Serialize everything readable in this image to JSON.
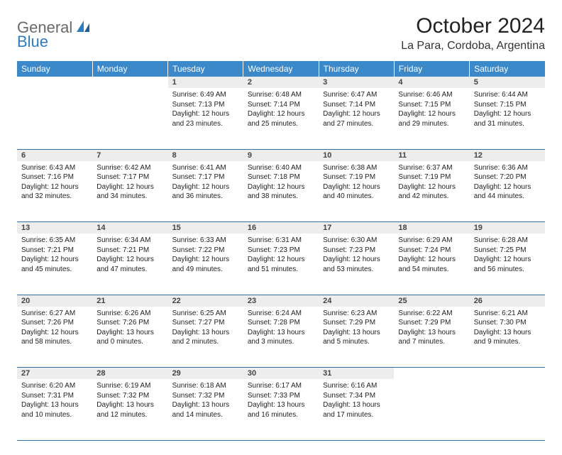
{
  "logo": {
    "part1": "General",
    "part2": "Blue"
  },
  "title": "October 2024",
  "location": "La Para, Cordoba, Argentina",
  "colors": {
    "header_bg": "#3b89c9",
    "header_text": "#ffffff",
    "daynum_bg": "#ededed",
    "row_border": "#2f6fa8",
    "logo_gray": "#6a6a6a",
    "logo_blue": "#2f7bbf"
  },
  "weekdays": [
    "Sunday",
    "Monday",
    "Tuesday",
    "Wednesday",
    "Thursday",
    "Friday",
    "Saturday"
  ],
  "weeks": [
    [
      null,
      null,
      {
        "n": "1",
        "sr": "6:49 AM",
        "ss": "7:13 PM",
        "d1": "12 hours",
        "d2": "and 23 minutes."
      },
      {
        "n": "2",
        "sr": "6:48 AM",
        "ss": "7:14 PM",
        "d1": "12 hours",
        "d2": "and 25 minutes."
      },
      {
        "n": "3",
        "sr": "6:47 AM",
        "ss": "7:14 PM",
        "d1": "12 hours",
        "d2": "and 27 minutes."
      },
      {
        "n": "4",
        "sr": "6:46 AM",
        "ss": "7:15 PM",
        "d1": "12 hours",
        "d2": "and 29 minutes."
      },
      {
        "n": "5",
        "sr": "6:44 AM",
        "ss": "7:15 PM",
        "d1": "12 hours",
        "d2": "and 31 minutes."
      }
    ],
    [
      {
        "n": "6",
        "sr": "6:43 AM",
        "ss": "7:16 PM",
        "d1": "12 hours",
        "d2": "and 32 minutes."
      },
      {
        "n": "7",
        "sr": "6:42 AM",
        "ss": "7:17 PM",
        "d1": "12 hours",
        "d2": "and 34 minutes."
      },
      {
        "n": "8",
        "sr": "6:41 AM",
        "ss": "7:17 PM",
        "d1": "12 hours",
        "d2": "and 36 minutes."
      },
      {
        "n": "9",
        "sr": "6:40 AM",
        "ss": "7:18 PM",
        "d1": "12 hours",
        "d2": "and 38 minutes."
      },
      {
        "n": "10",
        "sr": "6:38 AM",
        "ss": "7:19 PM",
        "d1": "12 hours",
        "d2": "and 40 minutes."
      },
      {
        "n": "11",
        "sr": "6:37 AM",
        "ss": "7:19 PM",
        "d1": "12 hours",
        "d2": "and 42 minutes."
      },
      {
        "n": "12",
        "sr": "6:36 AM",
        "ss": "7:20 PM",
        "d1": "12 hours",
        "d2": "and 44 minutes."
      }
    ],
    [
      {
        "n": "13",
        "sr": "6:35 AM",
        "ss": "7:21 PM",
        "d1": "12 hours",
        "d2": "and 45 minutes."
      },
      {
        "n": "14",
        "sr": "6:34 AM",
        "ss": "7:21 PM",
        "d1": "12 hours",
        "d2": "and 47 minutes."
      },
      {
        "n": "15",
        "sr": "6:33 AM",
        "ss": "7:22 PM",
        "d1": "12 hours",
        "d2": "and 49 minutes."
      },
      {
        "n": "16",
        "sr": "6:31 AM",
        "ss": "7:23 PM",
        "d1": "12 hours",
        "d2": "and 51 minutes."
      },
      {
        "n": "17",
        "sr": "6:30 AM",
        "ss": "7:23 PM",
        "d1": "12 hours",
        "d2": "and 53 minutes."
      },
      {
        "n": "18",
        "sr": "6:29 AM",
        "ss": "7:24 PM",
        "d1": "12 hours",
        "d2": "and 54 minutes."
      },
      {
        "n": "19",
        "sr": "6:28 AM",
        "ss": "7:25 PM",
        "d1": "12 hours",
        "d2": "and 56 minutes."
      }
    ],
    [
      {
        "n": "20",
        "sr": "6:27 AM",
        "ss": "7:26 PM",
        "d1": "12 hours",
        "d2": "and 58 minutes."
      },
      {
        "n": "21",
        "sr": "6:26 AM",
        "ss": "7:26 PM",
        "d1": "13 hours",
        "d2": "and 0 minutes."
      },
      {
        "n": "22",
        "sr": "6:25 AM",
        "ss": "7:27 PM",
        "d1": "13 hours",
        "d2": "and 2 minutes."
      },
      {
        "n": "23",
        "sr": "6:24 AM",
        "ss": "7:28 PM",
        "d1": "13 hours",
        "d2": "and 3 minutes."
      },
      {
        "n": "24",
        "sr": "6:23 AM",
        "ss": "7:29 PM",
        "d1": "13 hours",
        "d2": "and 5 minutes."
      },
      {
        "n": "25",
        "sr": "6:22 AM",
        "ss": "7:29 PM",
        "d1": "13 hours",
        "d2": "and 7 minutes."
      },
      {
        "n": "26",
        "sr": "6:21 AM",
        "ss": "7:30 PM",
        "d1": "13 hours",
        "d2": "and 9 minutes."
      }
    ],
    [
      {
        "n": "27",
        "sr": "6:20 AM",
        "ss": "7:31 PM",
        "d1": "13 hours",
        "d2": "and 10 minutes."
      },
      {
        "n": "28",
        "sr": "6:19 AM",
        "ss": "7:32 PM",
        "d1": "13 hours",
        "d2": "and 12 minutes."
      },
      {
        "n": "29",
        "sr": "6:18 AM",
        "ss": "7:32 PM",
        "d1": "13 hours",
        "d2": "and 14 minutes."
      },
      {
        "n": "30",
        "sr": "6:17 AM",
        "ss": "7:33 PM",
        "d1": "13 hours",
        "d2": "and 16 minutes."
      },
      {
        "n": "31",
        "sr": "6:16 AM",
        "ss": "7:34 PM",
        "d1": "13 hours",
        "d2": "and 17 minutes."
      },
      null,
      null
    ]
  ],
  "labels": {
    "sunrise": "Sunrise:",
    "sunset": "Sunset:",
    "daylight": "Daylight:"
  }
}
